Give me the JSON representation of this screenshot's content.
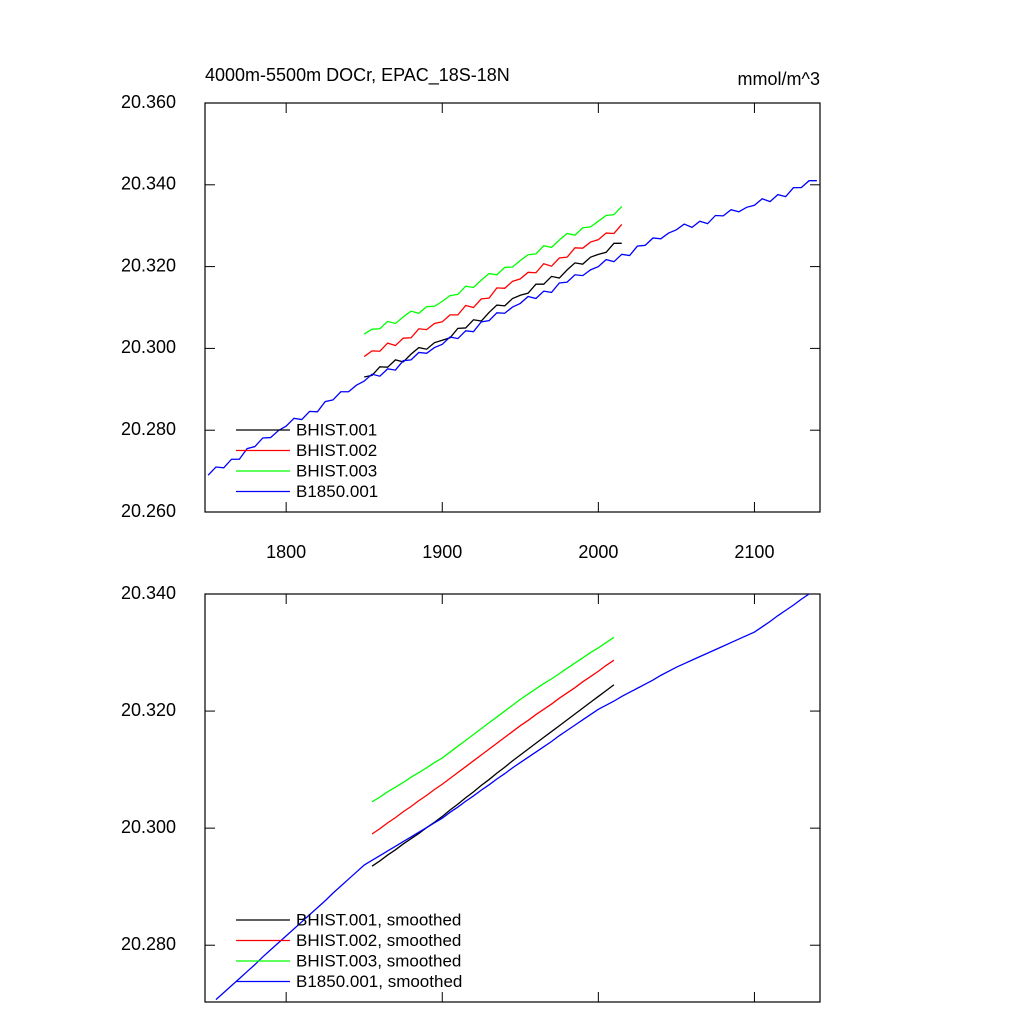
{
  "chart_data": [
    {
      "type": "line",
      "title": "4000m-5500m DOCr, EPAC_18S-18N",
      "right_title": "mmol/m^3",
      "x": [
        1750,
        1755,
        1760,
        1765,
        1770,
        1775,
        1780,
        1785,
        1790,
        1795,
        1800,
        1805,
        1810,
        1815,
        1820,
        1825,
        1830,
        1835,
        1840,
        1845,
        1850,
        1855,
        1860,
        1865,
        1870,
        1875,
        1880,
        1885,
        1890,
        1895,
        1900,
        1905,
        1910,
        1915,
        1920,
        1925,
        1930,
        1935,
        1940,
        1945,
        1950,
        1955,
        1960,
        1965,
        1970,
        1975,
        1980,
        1985,
        1990,
        1995,
        2000,
        2005,
        2010,
        2015,
        2020,
        2025,
        2030,
        2035,
        2040,
        2045,
        2050,
        2055,
        2060,
        2065,
        2070,
        2075,
        2080,
        2085,
        2090,
        2095,
        2100,
        2105,
        2110,
        2115,
        2120,
        2125,
        2130,
        2135,
        2140
      ],
      "series": [
        {
          "name": "BHIST.001",
          "color": "#000000",
          "values": [
            null,
            null,
            null,
            null,
            null,
            null,
            null,
            null,
            null,
            null,
            null,
            null,
            null,
            null,
            null,
            null,
            null,
            null,
            null,
            null,
            20.293,
            20.2934,
            20.2955,
            20.2954,
            20.2972,
            20.2967,
            20.2986,
            20.3002,
            20.2998,
            20.3014,
            20.302,
            20.3026,
            20.3049,
            20.305,
            20.307,
            20.3067,
            20.3088,
            20.3106,
            20.3104,
            20.3122,
            20.313,
            20.3135,
            20.3157,
            20.3157,
            20.3176,
            20.3172,
            20.3192,
            20.3209,
            20.3206,
            20.3223,
            20.323,
            20.3235,
            20.3257,
            20.3257,
            null,
            null,
            null,
            null,
            null,
            null,
            null,
            null,
            null,
            null,
            null,
            null,
            null,
            null,
            null,
            null,
            null,
            null,
            null,
            null,
            null,
            null,
            null,
            null,
            null
          ]
        },
        {
          "name": "BHIST.002",
          "color": "#ff0000",
          "values": [
            null,
            null,
            null,
            null,
            null,
            null,
            null,
            null,
            null,
            null,
            null,
            null,
            null,
            null,
            null,
            null,
            null,
            null,
            null,
            null,
            20.298,
            20.2994,
            20.2993,
            20.3013,
            20.3007,
            20.3025,
            20.3026,
            20.3048,
            20.3046,
            20.3061,
            20.3065,
            20.3082,
            20.3082,
            20.3105,
            20.31,
            20.3121,
            20.3123,
            20.3148,
            20.3147,
            20.3164,
            20.317,
            20.3186,
            20.3185,
            20.3207,
            20.3201,
            20.3221,
            20.3223,
            20.3246,
            20.3245,
            20.326,
            20.3266,
            20.3282,
            20.3281,
            20.3303,
            null,
            null,
            null,
            null,
            null,
            null,
            null,
            null,
            null,
            null,
            null,
            null,
            null,
            null,
            null,
            null,
            null,
            null,
            null,
            null,
            null,
            null,
            null,
            null,
            null
          ]
        },
        {
          "name": "BHIST.003",
          "color": "#00ff00",
          "values": [
            null,
            null,
            null,
            null,
            null,
            null,
            null,
            null,
            null,
            null,
            null,
            null,
            null,
            null,
            null,
            null,
            null,
            null,
            null,
            null,
            20.3035,
            20.3047,
            20.3048,
            20.3066,
            20.3061,
            20.3077,
            20.3091,
            20.3086,
            20.3102,
            20.3103,
            20.3115,
            20.3129,
            20.3132,
            20.3152,
            20.3149,
            20.3167,
            20.3183,
            20.318,
            20.3198,
            20.3199,
            20.3215,
            20.3229,
            20.3231,
            20.3251,
            20.3247,
            20.3265,
            20.3281,
            20.3277,
            20.3295,
            20.3297,
            20.3311,
            20.3325,
            20.3327,
            20.3347,
            null,
            null,
            null,
            null,
            null,
            null,
            null,
            null,
            null,
            null,
            null,
            null,
            null,
            null,
            null,
            null,
            null,
            null,
            null,
            null,
            null,
            null,
            null,
            null,
            null
          ]
        },
        {
          "name": "B1850.001",
          "color": "#0000ff",
          "values": [
            20.269,
            20.271,
            20.2708,
            20.2729,
            20.2729,
            20.2755,
            20.276,
            20.2781,
            20.2782,
            20.2799,
            20.281,
            20.2829,
            20.2826,
            20.2846,
            20.2845,
            20.287,
            20.2874,
            20.2894,
            20.2894,
            20.291,
            20.292,
            20.2937,
            20.2932,
            20.295,
            20.2947,
            20.297,
            20.2972,
            20.299,
            20.2988,
            20.3002,
            20.301,
            20.3028,
            20.3024,
            20.3043,
            20.3041,
            20.3065,
            20.3068,
            20.3087,
            20.3086,
            20.3101,
            20.311,
            20.3127,
            20.3122,
            20.314,
            20.3137,
            20.316,
            20.3162,
            20.318,
            20.3178,
            20.3192,
            20.32,
            20.3217,
            20.3212,
            20.323,
            20.3227,
            20.325,
            20.3252,
            20.327,
            20.3268,
            20.3282,
            20.329,
            20.3304,
            20.3296,
            20.3311,
            20.3305,
            20.3325,
            20.3324,
            20.3339,
            20.3334,
            20.3345,
            20.335,
            20.3366,
            20.3359,
            20.3376,
            20.3371,
            20.3393,
            20.3393,
            20.341,
            20.341
          ]
        }
      ],
      "xlim": [
        1748,
        2142
      ],
      "xticks": [
        1800,
        1900,
        2000,
        2100
      ],
      "xtick_labels": true,
      "ylim": [
        20.26,
        20.36
      ],
      "yticks": [
        {
          "value": 20.26,
          "label": "20.260"
        },
        {
          "value": 20.28,
          "label": "20.280"
        },
        {
          "value": 20.3,
          "label": "20.300"
        },
        {
          "value": 20.32,
          "label": "20.320"
        },
        {
          "value": 20.34,
          "label": "20.340"
        },
        {
          "value": 20.36,
          "label": "20.360"
        }
      ],
      "legend": "lower left",
      "grid": false
    },
    {
      "type": "line",
      "x": [
        1750,
        1755,
        1760,
        1765,
        1770,
        1775,
        1780,
        1785,
        1790,
        1795,
        1800,
        1805,
        1810,
        1815,
        1820,
        1825,
        1830,
        1835,
        1840,
        1845,
        1850,
        1855,
        1860,
        1865,
        1870,
        1875,
        1880,
        1885,
        1890,
        1895,
        1900,
        1905,
        1910,
        1915,
        1920,
        1925,
        1930,
        1935,
        1940,
        1945,
        1950,
        1955,
        1960,
        1965,
        1970,
        1975,
        1980,
        1985,
        1990,
        1995,
        2000,
        2005,
        2010,
        2015,
        2020,
        2025,
        2030,
        2035,
        2040,
        2045,
        2050,
        2055,
        2060,
        2065,
        2070,
        2075,
        2080,
        2085,
        2090,
        2095,
        2100,
        2105,
        2110,
        2115,
        2120,
        2125,
        2130,
        2135,
        2140
      ],
      "series": [
        {
          "name": "BHIST.001, smoothed",
          "color": "#000000",
          "values": [
            null,
            null,
            null,
            null,
            null,
            null,
            null,
            null,
            null,
            null,
            null,
            null,
            null,
            null,
            null,
            null,
            null,
            null,
            null,
            null,
            null,
            20.2935,
            20.2944,
            20.2954,
            20.2963,
            20.2973,
            20.2982,
            20.2991,
            20.3001,
            20.301,
            20.302,
            20.3031,
            20.3041,
            20.3052,
            20.3062,
            20.3073,
            20.3083,
            20.3094,
            20.3104,
            20.3115,
            20.3125,
            20.3135,
            20.3145,
            20.3155,
            20.3165,
            20.3175,
            20.3185,
            20.3195,
            20.3205,
            20.3215,
            20.3225,
            20.3235,
            20.3245,
            null,
            null,
            null,
            null,
            null,
            null,
            null,
            null,
            null,
            null,
            null,
            null,
            null,
            null,
            null,
            null,
            null,
            null,
            null,
            null,
            null,
            null,
            null,
            null,
            null,
            null
          ]
        },
        {
          "name": "BHIST.002, smoothed",
          "color": "#ff0000",
          "values": [
            null,
            null,
            null,
            null,
            null,
            null,
            null,
            null,
            null,
            null,
            null,
            null,
            null,
            null,
            null,
            null,
            null,
            null,
            null,
            null,
            null,
            20.299,
            20.2999,
            20.3009,
            20.3018,
            20.3028,
            20.3037,
            20.3047,
            20.3056,
            20.3066,
            20.3075,
            20.3085,
            20.3095,
            20.3105,
            20.3115,
            20.3125,
            20.3135,
            20.3145,
            20.3155,
            20.3165,
            20.3175,
            20.3184,
            20.3194,
            20.3203,
            20.3212,
            20.3222,
            20.3231,
            20.324,
            20.325,
            20.3259,
            20.3268,
            20.3278,
            20.3287,
            null,
            null,
            null,
            null,
            null,
            null,
            null,
            null,
            null,
            null,
            null,
            null,
            null,
            null,
            null,
            null,
            null,
            null,
            null,
            null,
            null,
            null,
            null,
            null,
            null,
            null
          ]
        },
        {
          "name": "BHIST.003, smoothed",
          "color": "#00ff00",
          "values": [
            null,
            null,
            null,
            null,
            null,
            null,
            null,
            null,
            null,
            null,
            null,
            null,
            null,
            null,
            null,
            null,
            null,
            null,
            null,
            null,
            null,
            20.3045,
            20.3053,
            20.3062,
            20.307,
            20.3078,
            20.3087,
            20.3095,
            20.3103,
            20.3112,
            20.312,
            20.313,
            20.314,
            20.315,
            20.316,
            20.317,
            20.318,
            20.319,
            20.32,
            20.321,
            20.322,
            20.3229,
            20.3238,
            20.3247,
            20.3255,
            20.3264,
            20.3273,
            20.3282,
            20.3291,
            20.33,
            20.3308,
            20.3317,
            20.3326,
            null,
            null,
            null,
            null,
            null,
            null,
            null,
            null,
            null,
            null,
            null,
            null,
            null,
            null,
            null,
            null,
            null,
            null,
            null,
            null,
            null,
            null,
            null,
            null,
            null,
            null
          ]
        },
        {
          "name": "B1850.001, smoothed",
          "color": "#0000ff",
          "values": [
            null,
            20.2707,
            20.2719,
            20.2731,
            20.2743,
            20.2755,
            20.2767,
            20.278,
            20.2792,
            20.2804,
            20.2816,
            20.2828,
            20.284,
            20.2852,
            20.2864,
            20.2876,
            20.2889,
            20.2901,
            20.2913,
            20.2925,
            20.2937,
            20.2945,
            20.2953,
            20.2961,
            20.2969,
            20.2977,
            20.2985,
            20.2993,
            20.3001,
            20.3009,
            20.3017,
            20.3027,
            20.3036,
            20.3046,
            20.3055,
            20.3065,
            20.3074,
            20.3084,
            20.3093,
            20.3103,
            20.3112,
            20.3121,
            20.313,
            20.3139,
            20.3148,
            20.3158,
            20.3167,
            20.3176,
            20.3185,
            20.3194,
            20.3203,
            20.321,
            20.3217,
            20.3225,
            20.3232,
            20.3239,
            20.3246,
            20.3253,
            20.3261,
            20.3268,
            20.3275,
            20.3281,
            20.3287,
            20.3293,
            20.3299,
            20.3305,
            20.3311,
            20.3317,
            20.3323,
            20.3329,
            20.3335,
            20.3344,
            20.3353,
            20.3363,
            20.3372,
            20.3381,
            20.3391,
            20.34,
            null
          ]
        }
      ],
      "xlim": [
        1748,
        2142
      ],
      "xticks": [
        1800,
        1900,
        2000,
        2100
      ],
      "xtick_labels": false,
      "ylim": [
        20.2703,
        20.34
      ],
      "yticks": [
        {
          "value": 20.28,
          "label": "20.280"
        },
        {
          "value": 20.3,
          "label": "20.300"
        },
        {
          "value": 20.32,
          "label": "20.320"
        },
        {
          "value": 20.34,
          "label": "20.340"
        }
      ],
      "legend": "lower left",
      "grid": false
    }
  ]
}
